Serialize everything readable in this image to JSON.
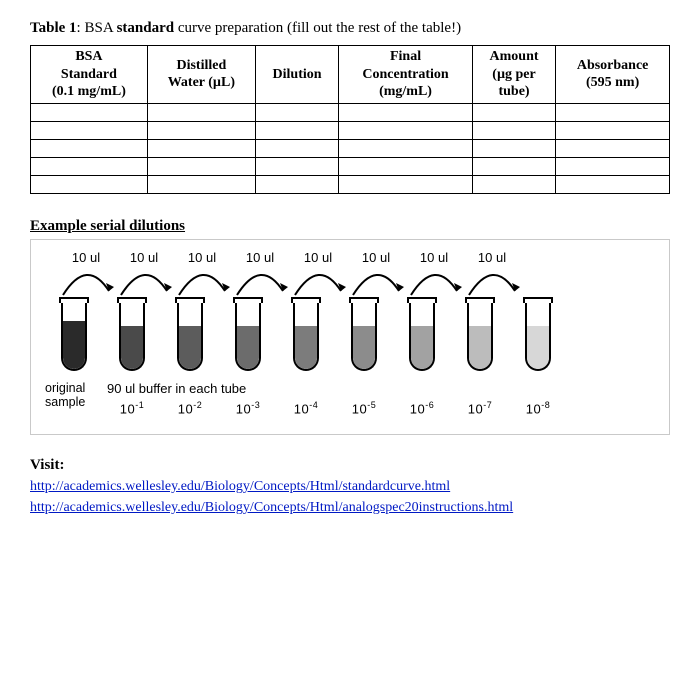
{
  "title": {
    "label": "Table 1",
    "boldPart": "standard",
    "prefix": "BSA",
    "suffix": "curve preparation (fill out the rest of the table!)"
  },
  "table": {
    "headers": [
      {
        "l1": "BSA",
        "l2": "Standard",
        "l3": "(0.1 mg/mL)"
      },
      {
        "l1": "Distilled",
        "l2": "Water (µL)"
      },
      {
        "l1": "Dilution"
      },
      {
        "l1": "Final",
        "l2": "Concentration",
        "l3": "(mg/mL)"
      },
      {
        "l1": "Amount",
        "l2": "(µg per",
        "l3": "tube)"
      },
      {
        "l1": "Absorbance",
        "l2": "(595 nm)"
      }
    ],
    "emptyRows": 5
  },
  "example": {
    "heading": "Example serial dilutions",
    "transferVol": "10 ul",
    "bufferNote": "90 ul buffer in each tube",
    "originalLabel1": "original",
    "originalLabel2": "sample",
    "tubes": [
      {
        "fillHeight": 48,
        "fillColor": "#2a2a2a",
        "label": ""
      },
      {
        "fillHeight": 43,
        "fillColor": "#4a4a4a",
        "label": "10-1"
      },
      {
        "fillHeight": 43,
        "fillColor": "#5c5c5c",
        "label": "10-2"
      },
      {
        "fillHeight": 43,
        "fillColor": "#6c6c6c",
        "label": "10-3"
      },
      {
        "fillHeight": 43,
        "fillColor": "#7c7c7c",
        "label": "10-4"
      },
      {
        "fillHeight": 43,
        "fillColor": "#8c8c8c",
        "label": "10-5"
      },
      {
        "fillHeight": 43,
        "fillColor": "#a2a2a2",
        "label": "10-6"
      },
      {
        "fillHeight": 43,
        "fillColor": "#bcbcbc",
        "label": "10-7"
      },
      {
        "fillHeight": 43,
        "fillColor": "#d7d7d7",
        "label": "10-8"
      }
    ],
    "arrowColor": "#000000"
  },
  "visit": {
    "label": "Visit:",
    "links": [
      "http://academics.wellesley.edu/Biology/Concepts/Html/standardcurve.html",
      "http://academics.wellesley.edu/Biology/Concepts/Html/analogspec20instructions.html"
    ]
  }
}
